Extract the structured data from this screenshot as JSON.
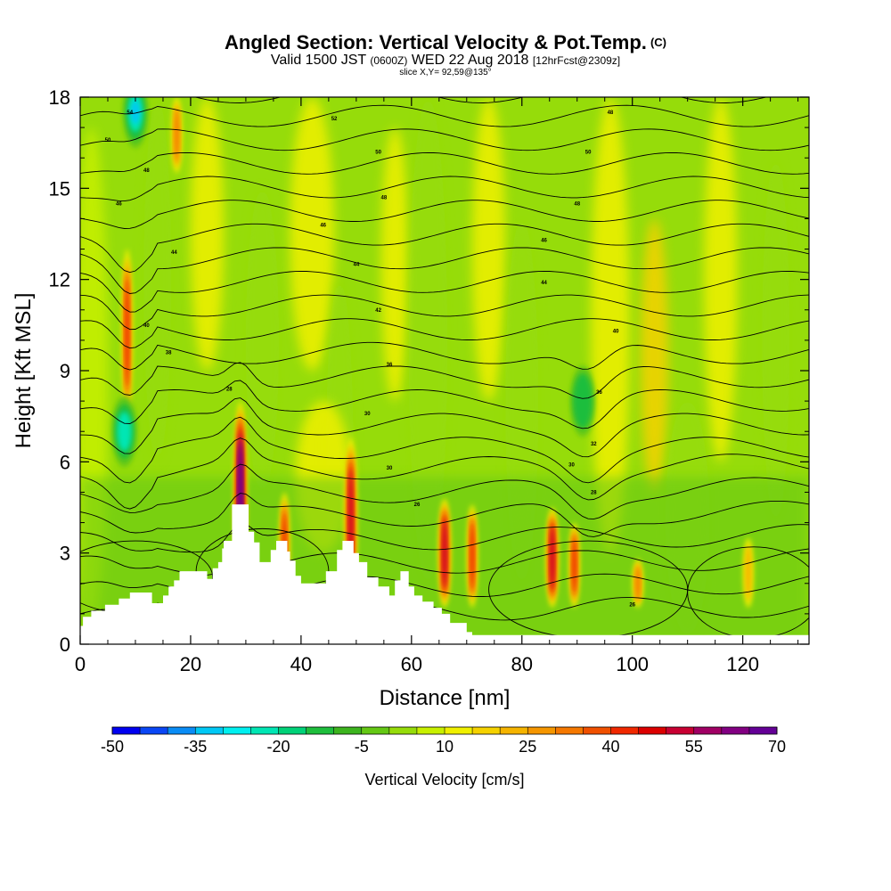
{
  "chart_data": {
    "type": "heatmap",
    "title": "Angled Section: Vertical Velocity & Pot.Temp.",
    "title_unit": "(C)",
    "subtitle_pre": "Valid 1500 JST",
    "subtitle_utc": "(0600Z)",
    "subtitle_date": "WED 22 Aug 2018",
    "subtitle_fcst": "[12hrFcst@2309z]",
    "slice_label": "slice X,Y= 92,59@135°",
    "xlabel": "Distance [nm]",
    "ylabel": "Height [Kft MSL]",
    "xlim": [
      0,
      132
    ],
    "ylim": [
      0,
      18
    ],
    "x_ticks": [
      "0",
      "20",
      "40",
      "60",
      "80",
      "100",
      "120"
    ],
    "y_ticks": [
      "0",
      "3",
      "6",
      "9",
      "12",
      "15",
      "18"
    ],
    "colorbar": {
      "label": "Vertical Velocity [cm/s]",
      "tick_labels": [
        "-50",
        "-35",
        "-20",
        "-5",
        "10",
        "25",
        "40",
        "55",
        "70"
      ],
      "min": -50,
      "max": 70,
      "step": 5,
      "colors": [
        "#0000f0",
        "#0a46f5",
        "#0a8cf5",
        "#00c8f5",
        "#00f0f0",
        "#00e6b4",
        "#00d278",
        "#1ebe3c",
        "#3cb41e",
        "#64c814",
        "#96dc0a",
        "#c8f000",
        "#f0f000",
        "#f5d200",
        "#f5b400",
        "#f59600",
        "#f57800",
        "#f05000",
        "#f02800",
        "#dc0000",
        "#c80032",
        "#a00064",
        "#820082",
        "#640096"
      ]
    },
    "background_color": "#96dc0a",
    "updraft_cores": [
      {
        "x": 29,
        "top": 8.0,
        "max": 70
      },
      {
        "x": 37,
        "top": 5.0,
        "max": 45
      },
      {
        "x": 49,
        "top": 6.8,
        "max": 50
      },
      {
        "x": 66,
        "top": 4.8,
        "max": 50
      },
      {
        "x": 71,
        "top": 4.6,
        "max": 45
      },
      {
        "x": 85.5,
        "top": 4.5,
        "max": 55
      },
      {
        "x": 89.5,
        "top": 4.0,
        "max": 40
      },
      {
        "x": 101,
        "top": 2.8,
        "max": 35
      },
      {
        "x": 121,
        "top": 3.5,
        "max": 20
      },
      {
        "x": 8.5,
        "top": 13.0,
        "max": 40
      },
      {
        "x": 17.5,
        "top": 18.0,
        "max": 30
      }
    ],
    "downdraft_cores": [
      {
        "x": 10,
        "y": 17.5,
        "min": -30
      },
      {
        "x": 8,
        "y": 7.0,
        "min": -20
      },
      {
        "x": 91,
        "y": 8.0,
        "min": -15
      }
    ],
    "terrain": [
      [
        0,
        0.6
      ],
      [
        0.5,
        0.6
      ],
      [
        0.5,
        0.9
      ],
      [
        2,
        0.9
      ],
      [
        2,
        1.1
      ],
      [
        4.5,
        1.1
      ],
      [
        4.5,
        1.3
      ],
      [
        7,
        1.3
      ],
      [
        7,
        1.5
      ],
      [
        9,
        1.5
      ],
      [
        9,
        1.7
      ],
      [
        13,
        1.7
      ],
      [
        13,
        1.35
      ],
      [
        15,
        1.35
      ],
      [
        15,
        1.6
      ],
      [
        16,
        1.6
      ],
      [
        16,
        1.9
      ],
      [
        17,
        1.9
      ],
      [
        17,
        2.1
      ],
      [
        18,
        2.1
      ],
      [
        18,
        2.4
      ],
      [
        23,
        2.4
      ],
      [
        23,
        2.15
      ],
      [
        24,
        2.15
      ],
      [
        24,
        2.5
      ],
      [
        25,
        2.5
      ],
      [
        25,
        2.7
      ],
      [
        25.7,
        2.7
      ],
      [
        25.7,
        3.15
      ],
      [
        26,
        3.15
      ],
      [
        26,
        3.4
      ],
      [
        27.5,
        3.4
      ],
      [
        27.5,
        4.6
      ],
      [
        30.5,
        4.6
      ],
      [
        30.5,
        3.7
      ],
      [
        31.5,
        3.7
      ],
      [
        31.5,
        3.35
      ],
      [
        32.5,
        3.35
      ],
      [
        32.5,
        2.7
      ],
      [
        34.5,
        2.7
      ],
      [
        34.5,
        3.1
      ],
      [
        35.5,
        3.1
      ],
      [
        35.5,
        3.4
      ],
      [
        37.5,
        3.4
      ],
      [
        37.5,
        3.05
      ],
      [
        38,
        3.05
      ],
      [
        38,
        2.75
      ],
      [
        39,
        2.75
      ],
      [
        39,
        2.25
      ],
      [
        40,
        2.25
      ],
      [
        40,
        2.0
      ],
      [
        44.5,
        2.0
      ],
      [
        44.5,
        2.4
      ],
      [
        46.5,
        2.4
      ],
      [
        46.5,
        3.1
      ],
      [
        47.5,
        3.1
      ],
      [
        47.5,
        3.4
      ],
      [
        49.5,
        3.4
      ],
      [
        49.5,
        3.0
      ],
      [
        50.5,
        3.0
      ],
      [
        50.5,
        2.7
      ],
      [
        52,
        2.7
      ],
      [
        52,
        2.2
      ],
      [
        54,
        2.2
      ],
      [
        54,
        1.9
      ],
      [
        56,
        1.9
      ],
      [
        56,
        1.6
      ],
      [
        57,
        1.6
      ],
      [
        57,
        2.1
      ],
      [
        58,
        2.1
      ],
      [
        58,
        2.4
      ],
      [
        59.5,
        2.4
      ],
      [
        59.5,
        1.9
      ],
      [
        60.5,
        1.9
      ],
      [
        60.5,
        1.6
      ],
      [
        62,
        1.6
      ],
      [
        62,
        1.4
      ],
      [
        64,
        1.4
      ],
      [
        64,
        1.2
      ],
      [
        65.5,
        1.2
      ],
      [
        65.5,
        1.0
      ],
      [
        67,
        1.0
      ],
      [
        67,
        0.7
      ],
      [
        70,
        0.7
      ],
      [
        70,
        0.4
      ],
      [
        71,
        0.4
      ],
      [
        71,
        0.3
      ],
      [
        132,
        0.3
      ]
    ],
    "theta_contour_labels": [
      {
        "x": 9,
        "y": 17.5,
        "text": "54"
      },
      {
        "x": 46,
        "y": 17.3,
        "text": "52"
      },
      {
        "x": 96,
        "y": 17.5,
        "text": "48"
      },
      {
        "x": 5,
        "y": 16.6,
        "text": "50"
      },
      {
        "x": 54,
        "y": 16.2,
        "text": "50"
      },
      {
        "x": 92,
        "y": 16.2,
        "text": "50"
      },
      {
        "x": 12,
        "y": 15.6,
        "text": "48"
      },
      {
        "x": 55,
        "y": 14.7,
        "text": "48"
      },
      {
        "x": 90,
        "y": 14.5,
        "text": "48"
      },
      {
        "x": 7,
        "y": 14.5,
        "text": "46"
      },
      {
        "x": 44,
        "y": 13.8,
        "text": "46"
      },
      {
        "x": 84,
        "y": 13.3,
        "text": "46"
      },
      {
        "x": 17,
        "y": 12.9,
        "text": "44"
      },
      {
        "x": 50,
        "y": 12.5,
        "text": "44"
      },
      {
        "x": 84,
        "y": 11.9,
        "text": "44"
      },
      {
        "x": 54,
        "y": 11.0,
        "text": "42"
      },
      {
        "x": 12,
        "y": 10.5,
        "text": "40"
      },
      {
        "x": 97,
        "y": 10.3,
        "text": "40"
      },
      {
        "x": 16,
        "y": 9.6,
        "text": "38"
      },
      {
        "x": 56,
        "y": 9.2,
        "text": "36"
      },
      {
        "x": 94,
        "y": 8.3,
        "text": "36"
      },
      {
        "x": 27,
        "y": 8.4,
        "text": "28"
      },
      {
        "x": 52,
        "y": 7.6,
        "text": "30"
      },
      {
        "x": 93,
        "y": 6.6,
        "text": "32"
      },
      {
        "x": 56,
        "y": 5.8,
        "text": "30"
      },
      {
        "x": 89,
        "y": 5.9,
        "text": "30"
      },
      {
        "x": 93,
        "y": 5.0,
        "text": "28"
      },
      {
        "x": 61,
        "y": 4.6,
        "text": "26"
      },
      {
        "x": 100,
        "y": 1.3,
        "text": "26"
      }
    ]
  }
}
